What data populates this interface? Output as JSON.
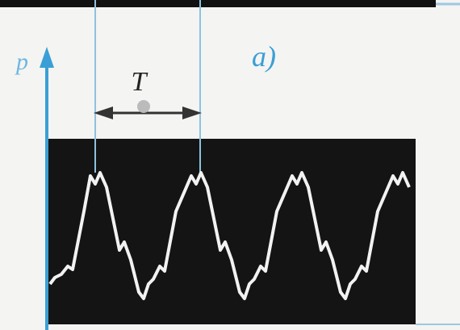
{
  "labels": {
    "axis": "p",
    "period": "T",
    "panel": "a)"
  }
}
